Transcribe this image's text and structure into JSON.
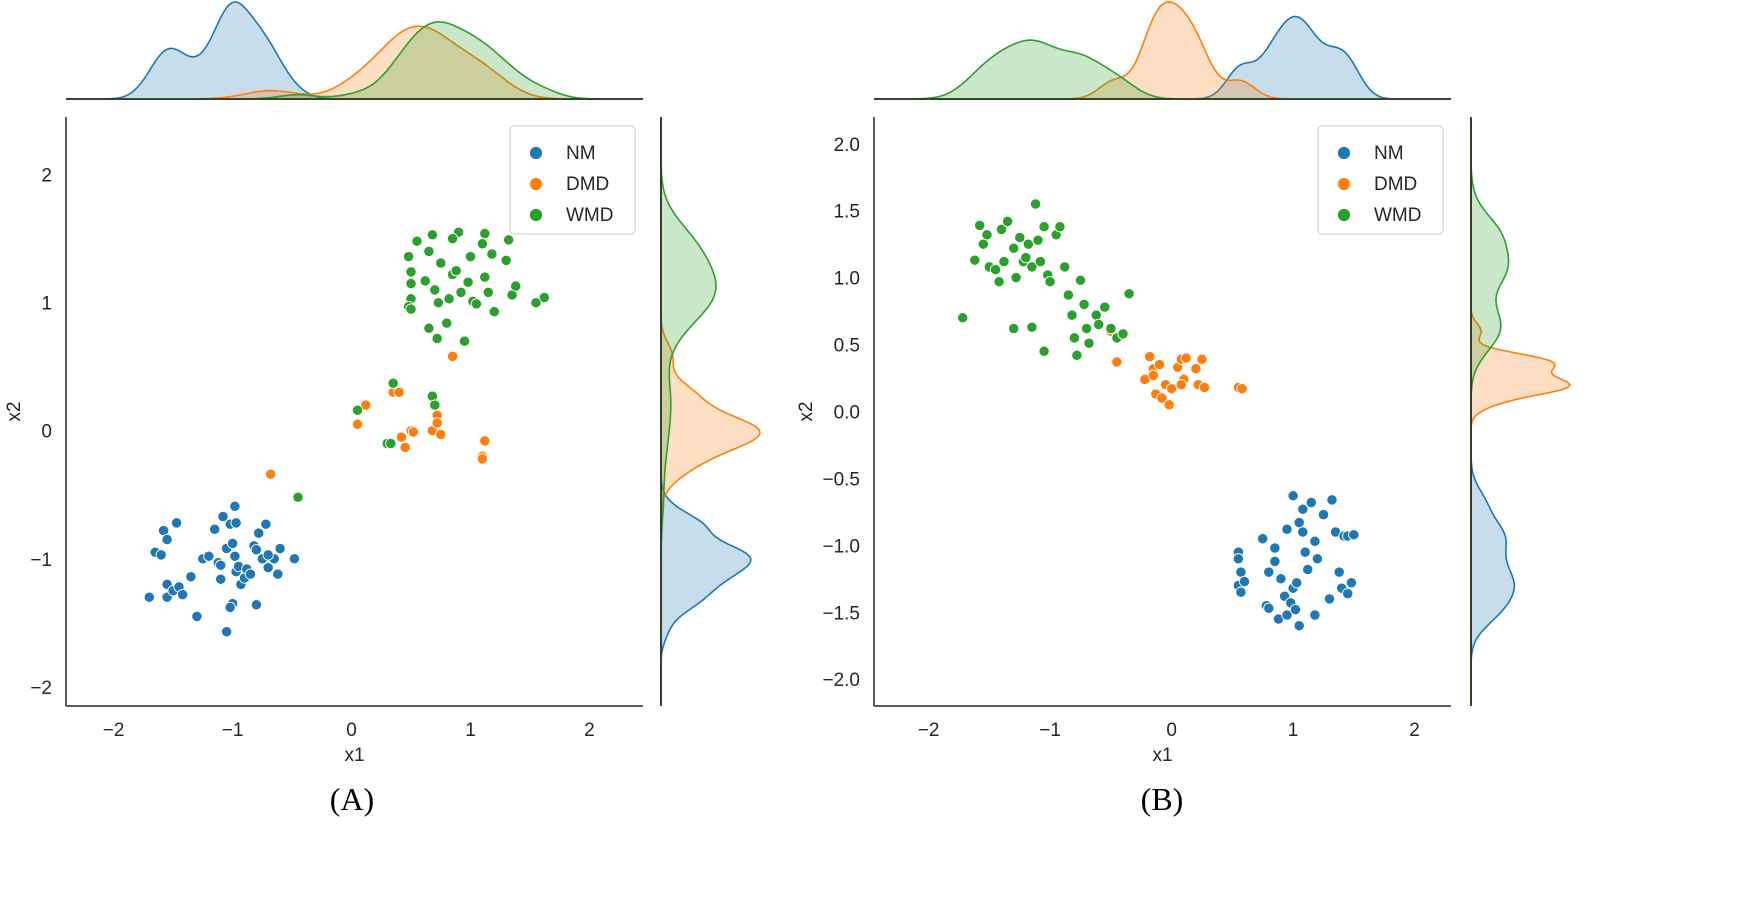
{
  "colors": {
    "NM": "#1f77b4",
    "DMD": "#ff7f0e",
    "WMD": "#2ca02c",
    "spine": "#262626"
  },
  "chart_data": [
    {
      "type": "scatter",
      "caption": "(A)",
      "xlabel": "x1",
      "ylabel": "x2",
      "xlim": [
        -2.4,
        2.45
      ],
      "ylim": [
        -2.15,
        2.45
      ],
      "xticks": [
        -2,
        -1,
        0,
        1,
        2
      ],
      "xtick_labels": [
        "−2",
        "−1",
        "0",
        "1",
        "2"
      ],
      "yticks": [
        -2,
        -1,
        0,
        1,
        2
      ],
      "ytick_labels": [
        "−2",
        "−1",
        "0",
        "1",
        "2"
      ],
      "grid": false,
      "legend": {
        "placement": "top-right",
        "entries": [
          "NM",
          "DMD",
          "WMD"
        ]
      },
      "marginals": "kde",
      "series": [
        {
          "name": "NM",
          "points": [
            [
              -1.7,
              -1.3
            ],
            [
              -1.65,
              -0.95
            ],
            [
              -1.6,
              -0.97
            ],
            [
              -1.55,
              -1.2
            ],
            [
              -1.55,
              -1.3
            ],
            [
              -1.5,
              -1.25
            ],
            [
              -1.45,
              -1.22
            ],
            [
              -1.58,
              -0.78
            ],
            [
              -1.55,
              -0.85
            ],
            [
              -1.47,
              -0.72
            ],
            [
              -1.42,
              -1.28
            ],
            [
              -1.35,
              -1.14
            ],
            [
              -1.3,
              -1.45
            ],
            [
              -1.25,
              -1.0
            ],
            [
              -1.2,
              -0.98
            ],
            [
              -1.15,
              -0.77
            ],
            [
              -1.12,
              -1.03
            ],
            [
              -1.1,
              -1.16
            ],
            [
              -1.08,
              -0.67
            ],
            [
              -1.05,
              -0.92
            ],
            [
              -1.02,
              -0.73
            ],
            [
              -1.0,
              -0.88
            ],
            [
              -0.98,
              -0.59
            ],
            [
              -0.97,
              -0.72
            ],
            [
              -1.05,
              -1.57
            ],
            [
              -1.0,
              -1.35
            ],
            [
              -1.02,
              -1.38
            ],
            [
              -0.98,
              -0.98
            ],
            [
              -0.97,
              -1.1
            ],
            [
              -0.95,
              -1.06
            ],
            [
              -0.93,
              -1.2
            ],
            [
              -0.9,
              -1.15
            ],
            [
              -0.88,
              -1.08
            ],
            [
              -0.85,
              -1.12
            ],
            [
              -0.82,
              -0.9
            ],
            [
              -0.8,
              -0.93
            ],
            [
              -0.78,
              -0.8
            ],
            [
              -0.75,
              -1.0
            ],
            [
              -0.72,
              -0.73
            ],
            [
              -0.7,
              -1.07
            ],
            [
              -0.65,
              -1.0
            ],
            [
              -0.62,
              -1.12
            ],
            [
              -0.6,
              -0.92
            ],
            [
              -0.8,
              -1.36
            ],
            [
              -0.48,
              -1.0
            ],
            [
              -0.7,
              -0.97
            ],
            [
              -1.1,
              -1.05
            ]
          ]
        },
        {
          "name": "DMD",
          "points": [
            [
              -0.68,
              -0.34
            ],
            [
              0.05,
              0.05
            ],
            [
              0.12,
              0.2
            ],
            [
              0.35,
              0.3
            ],
            [
              0.4,
              0.3
            ],
            [
              0.42,
              -0.05
            ],
            [
              0.45,
              -0.13
            ],
            [
              0.5,
              0.0
            ],
            [
              0.52,
              -0.01
            ],
            [
              0.68,
              0.0
            ],
            [
              0.72,
              0.12
            ],
            [
              0.75,
              -0.03
            ],
            [
              0.72,
              0.06
            ],
            [
              0.85,
              0.58
            ],
            [
              1.1,
              -0.2
            ],
            [
              1.12,
              -0.08
            ],
            [
              1.1,
              -0.22
            ]
          ]
        },
        {
          "name": "WMD",
          "points": [
            [
              -0.45,
              -0.52
            ],
            [
              0.05,
              0.16
            ],
            [
              0.3,
              -0.1
            ],
            [
              0.33,
              -0.1
            ],
            [
              0.35,
              0.37
            ],
            [
              0.68,
              0.27
            ],
            [
              0.7,
              0.2
            ],
            [
              0.48,
              1.36
            ],
            [
              0.5,
              1.24
            ],
            [
              0.5,
              1.15
            ],
            [
              0.5,
              1.03
            ],
            [
              0.48,
              0.97
            ],
            [
              0.5,
              0.95
            ],
            [
              0.55,
              1.48
            ],
            [
              0.62,
              1.17
            ],
            [
              0.65,
              1.4
            ],
            [
              0.65,
              0.8
            ],
            [
              0.68,
              1.53
            ],
            [
              0.7,
              1.1
            ],
            [
              0.72,
              0.72
            ],
            [
              0.73,
              1.0
            ],
            [
              0.75,
              1.31
            ],
            [
              0.8,
              0.84
            ],
            [
              0.82,
              1.03
            ],
            [
              0.85,
              1.22
            ],
            [
              0.88,
              1.25
            ],
            [
              0.9,
              1.55
            ],
            [
              0.92,
              1.08
            ],
            [
              0.95,
              0.7
            ],
            [
              0.98,
              1.16
            ],
            [
              1.0,
              1.36
            ],
            [
              1.02,
              1.01
            ],
            [
              1.05,
              0.99
            ],
            [
              1.1,
              1.46
            ],
            [
              1.12,
              1.2
            ],
            [
              1.12,
              1.54
            ],
            [
              1.15,
              1.08
            ],
            [
              1.18,
              1.38
            ],
            [
              1.2,
              0.93
            ],
            [
              1.3,
              1.33
            ],
            [
              1.32,
              1.49
            ],
            [
              1.35,
              1.06
            ],
            [
              1.38,
              1.13
            ],
            [
              1.62,
              1.04
            ],
            [
              1.55,
              1.0
            ],
            [
              0.85,
              1.5
            ]
          ]
        }
      ]
    },
    {
      "type": "scatter",
      "caption": "(B)",
      "xlabel": "x1",
      "ylabel": "x2",
      "xlim": [
        -2.45,
        2.3
      ],
      "ylim": [
        -2.2,
        2.2
      ],
      "xticks": [
        -2,
        -1,
        0,
        1,
        2
      ],
      "xtick_labels": [
        "−2",
        "−1",
        "0",
        "1",
        "2"
      ],
      "yticks": [
        -2.0,
        -1.5,
        -1.0,
        -0.5,
        0.0,
        0.5,
        1.0,
        1.5,
        2.0
      ],
      "ytick_labels": [
        "−2.0",
        "−1.5",
        "−1.0",
        "−0.5",
        "0.0",
        "0.5",
        "1.0",
        "1.5",
        "2.0"
      ],
      "grid": false,
      "legend": {
        "placement": "top-right",
        "entries": [
          "NM",
          "DMD",
          "WMD"
        ]
      },
      "marginals": "kde",
      "series": [
        {
          "name": "NM",
          "points": [
            [
              0.55,
              -1.05
            ],
            [
              0.55,
              -1.1
            ],
            [
              0.57,
              -1.2
            ],
            [
              0.55,
              -1.3
            ],
            [
              0.57,
              -1.35
            ],
            [
              0.75,
              -0.95
            ],
            [
              0.78,
              -1.45
            ],
            [
              0.8,
              -1.47
            ],
            [
              0.8,
              -1.2
            ],
            [
              0.85,
              -1.12
            ],
            [
              0.85,
              -1.02
            ],
            [
              0.88,
              -1.55
            ],
            [
              0.9,
              -1.25
            ],
            [
              0.93,
              -1.38
            ],
            [
              0.95,
              -0.88
            ],
            [
              0.95,
              -1.52
            ],
            [
              0.98,
              -1.43
            ],
            [
              1.0,
              -0.63
            ],
            [
              1.0,
              -1.32
            ],
            [
              1.02,
              -1.48
            ],
            [
              1.03,
              -1.28
            ],
            [
              1.05,
              -0.83
            ],
            [
              1.05,
              -1.6
            ],
            [
              1.08,
              -0.73
            ],
            [
              1.08,
              -0.9
            ],
            [
              1.12,
              -1.18
            ],
            [
              1.15,
              -0.68
            ],
            [
              1.18,
              -0.97
            ],
            [
              1.18,
              -1.52
            ],
            [
              1.25,
              -0.77
            ],
            [
              1.3,
              -1.4
            ],
            [
              1.32,
              -0.66
            ],
            [
              1.35,
              -0.9
            ],
            [
              1.38,
              -1.2
            ],
            [
              1.4,
              -1.32
            ],
            [
              1.42,
              -0.93
            ],
            [
              1.45,
              -0.93
            ],
            [
              1.45,
              -1.36
            ],
            [
              1.5,
              -0.92
            ],
            [
              1.48,
              -1.28
            ],
            [
              1.2,
              -1.1
            ],
            [
              1.1,
              -1.05
            ],
            [
              0.6,
              -1.27
            ]
          ]
        },
        {
          "name": "DMD",
          "points": [
            [
              -0.5,
              0.6
            ],
            [
              -0.45,
              0.37
            ],
            [
              -0.22,
              0.24
            ],
            [
              -0.18,
              0.41
            ],
            [
              -0.15,
              0.32
            ],
            [
              -0.15,
              0.27
            ],
            [
              -0.13,
              0.13
            ],
            [
              -0.1,
              0.35
            ],
            [
              -0.08,
              0.1
            ],
            [
              -0.05,
              0.2
            ],
            [
              -0.02,
              0.05
            ],
            [
              0.0,
              0.17
            ],
            [
              0.05,
              0.33
            ],
            [
              0.08,
              0.39
            ],
            [
              0.12,
              0.4
            ],
            [
              0.1,
              0.24
            ],
            [
              0.2,
              0.32
            ],
            [
              0.25,
              0.39
            ],
            [
              0.22,
              0.2
            ],
            [
              0.27,
              0.18
            ],
            [
              0.55,
              0.18
            ],
            [
              0.58,
              0.17
            ],
            [
              0.08,
              0.2
            ]
          ]
        },
        {
          "name": "WMD",
          "points": [
            [
              -1.72,
              0.7
            ],
            [
              -1.58,
              1.39
            ],
            [
              -1.55,
              1.25
            ],
            [
              -1.52,
              1.32
            ],
            [
              -1.5,
              1.08
            ],
            [
              -1.45,
              1.06
            ],
            [
              -1.42,
              0.97
            ],
            [
              -1.4,
              1.36
            ],
            [
              -1.38,
              1.12
            ],
            [
              -1.35,
              1.42
            ],
            [
              -1.3,
              1.22
            ],
            [
              -1.28,
              1.0
            ],
            [
              -1.25,
              1.3
            ],
            [
              -1.22,
              1.12
            ],
            [
              -1.2,
              1.15
            ],
            [
              -1.18,
              1.25
            ],
            [
              -1.15,
              1.08
            ],
            [
              -1.15,
              0.63
            ],
            [
              -1.12,
              1.55
            ],
            [
              -1.1,
              1.28
            ],
            [
              -1.08,
              1.12
            ],
            [
              -1.05,
              1.38
            ],
            [
              -1.02,
              1.02
            ],
            [
              -1.0,
              0.97
            ],
            [
              -0.95,
              1.32
            ],
            [
              -0.92,
              1.38
            ],
            [
              -0.88,
              1.08
            ],
            [
              -0.85,
              0.87
            ],
            [
              -0.82,
              0.72
            ],
            [
              -0.8,
              0.55
            ],
            [
              -0.78,
              0.42
            ],
            [
              -0.75,
              0.98
            ],
            [
              -0.72,
              0.8
            ],
            [
              -0.7,
              0.62
            ],
            [
              -0.68,
              0.51
            ],
            [
              -0.62,
              0.72
            ],
            [
              -0.6,
              0.65
            ],
            [
              -0.55,
              0.78
            ],
            [
              -0.5,
              0.62
            ],
            [
              -0.45,
              0.55
            ],
            [
              -0.4,
              0.58
            ],
            [
              -0.35,
              0.88
            ],
            [
              -1.62,
              1.13
            ],
            [
              -1.05,
              0.45
            ],
            [
              -1.3,
              0.62
            ]
          ]
        }
      ]
    }
  ]
}
